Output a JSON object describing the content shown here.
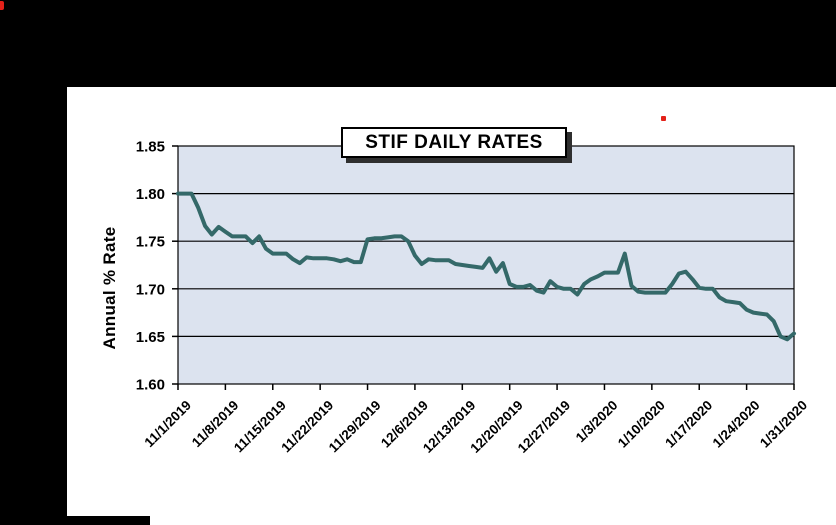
{
  "window": {
    "background": "#000000",
    "panel_background": "#ffffff"
  },
  "decorations": {
    "corner_mark_color": "#e32119",
    "stray_dot_color": "#e32119"
  },
  "chart_data": {
    "type": "line",
    "title": "STIF DAILY RATES",
    "xlabel": "",
    "ylabel": "Annual % Rate",
    "ylim": [
      1.6,
      1.85
    ],
    "y_tick_step": 0.05,
    "y_tick_labels": [
      "1.60",
      "1.65",
      "1.70",
      "1.75",
      "1.80",
      "1.85"
    ],
    "x_tick_every": 7,
    "x_tick_labels": [
      "11/1/2019",
      "11/8/2019",
      "11/15/2019",
      "11/22/2019",
      "11/29/2019",
      "12/6/2019",
      "12/13/2019",
      "12/20/2019",
      "12/27/2019",
      "1/3/2020",
      "1/10/2020",
      "1/17/2020",
      "1/24/2020",
      "1/31/2020"
    ],
    "grid": "horizontal-black-gridlines",
    "legend": "none",
    "plot_bg": "#dce3ef",
    "line_color": "#346969",
    "x": [
      "11/1/2019",
      "11/2/2019",
      "11/3/2019",
      "11/4/2019",
      "11/5/2019",
      "11/6/2019",
      "11/7/2019",
      "11/8/2019",
      "11/9/2019",
      "11/10/2019",
      "11/11/2019",
      "11/12/2019",
      "11/13/2019",
      "11/14/2019",
      "11/15/2019",
      "11/16/2019",
      "11/17/2019",
      "11/18/2019",
      "11/19/2019",
      "11/20/2019",
      "11/21/2019",
      "11/22/2019",
      "11/23/2019",
      "11/24/2019",
      "11/25/2019",
      "11/26/2019",
      "11/27/2019",
      "11/28/2019",
      "11/29/2019",
      "11/30/2019",
      "12/1/2019",
      "12/2/2019",
      "12/3/2019",
      "12/4/2019",
      "12/5/2019",
      "12/6/2019",
      "12/7/2019",
      "12/8/2019",
      "12/9/2019",
      "12/10/2019",
      "12/11/2019",
      "12/12/2019",
      "12/13/2019",
      "12/14/2019",
      "12/15/2019",
      "12/16/2019",
      "12/17/2019",
      "12/18/2019",
      "12/19/2019",
      "12/20/2019",
      "12/21/2019",
      "12/22/2019",
      "12/23/2019",
      "12/24/2019",
      "12/25/2019",
      "12/26/2019",
      "12/27/2019",
      "12/28/2019",
      "12/29/2019",
      "12/30/2019",
      "12/31/2019",
      "1/1/2020",
      "1/2/2020",
      "1/3/2020",
      "1/4/2020",
      "1/5/2020",
      "1/6/2020",
      "1/7/2020",
      "1/8/2020",
      "1/9/2020",
      "1/10/2020",
      "1/11/2020",
      "1/12/2020",
      "1/13/2020",
      "1/14/2020",
      "1/15/2020",
      "1/16/2020",
      "1/17/2020",
      "1/18/2020",
      "1/19/2020",
      "1/20/2020",
      "1/21/2020",
      "1/22/2020",
      "1/23/2020",
      "1/24/2020",
      "1/25/2020",
      "1/26/2020",
      "1/27/2020",
      "1/28/2020",
      "1/29/2020",
      "1/30/2020",
      "1/31/2020"
    ],
    "values": [
      1.8,
      1.8,
      1.8,
      1.785,
      1.766,
      1.757,
      1.765,
      1.76,
      1.755,
      1.755,
      1.755,
      1.748,
      1.755,
      1.742,
      1.737,
      1.737,
      1.737,
      1.731,
      1.727,
      1.733,
      1.732,
      1.732,
      1.732,
      1.731,
      1.729,
      1.731,
      1.728,
      1.728,
      1.752,
      1.753,
      1.753,
      1.754,
      1.755,
      1.755,
      1.75,
      1.735,
      1.726,
      1.731,
      1.73,
      1.73,
      1.73,
      1.726,
      1.725,
      1.724,
      1.723,
      1.722,
      1.732,
      1.718,
      1.727,
      1.705,
      1.702,
      1.702,
      1.704,
      1.698,
      1.696,
      1.708,
      1.702,
      1.7,
      1.7,
      1.694,
      1.705,
      1.71,
      1.713,
      1.717,
      1.717,
      1.717,
      1.737,
      1.703,
      1.697,
      1.696,
      1.696,
      1.696,
      1.696,
      1.705,
      1.716,
      1.718,
      1.71,
      1.701,
      1.7,
      1.7,
      1.691,
      1.687,
      1.686,
      1.685,
      1.678,
      1.675,
      1.674,
      1.673,
      1.666,
      1.65,
      1.647,
      1.653
    ]
  }
}
